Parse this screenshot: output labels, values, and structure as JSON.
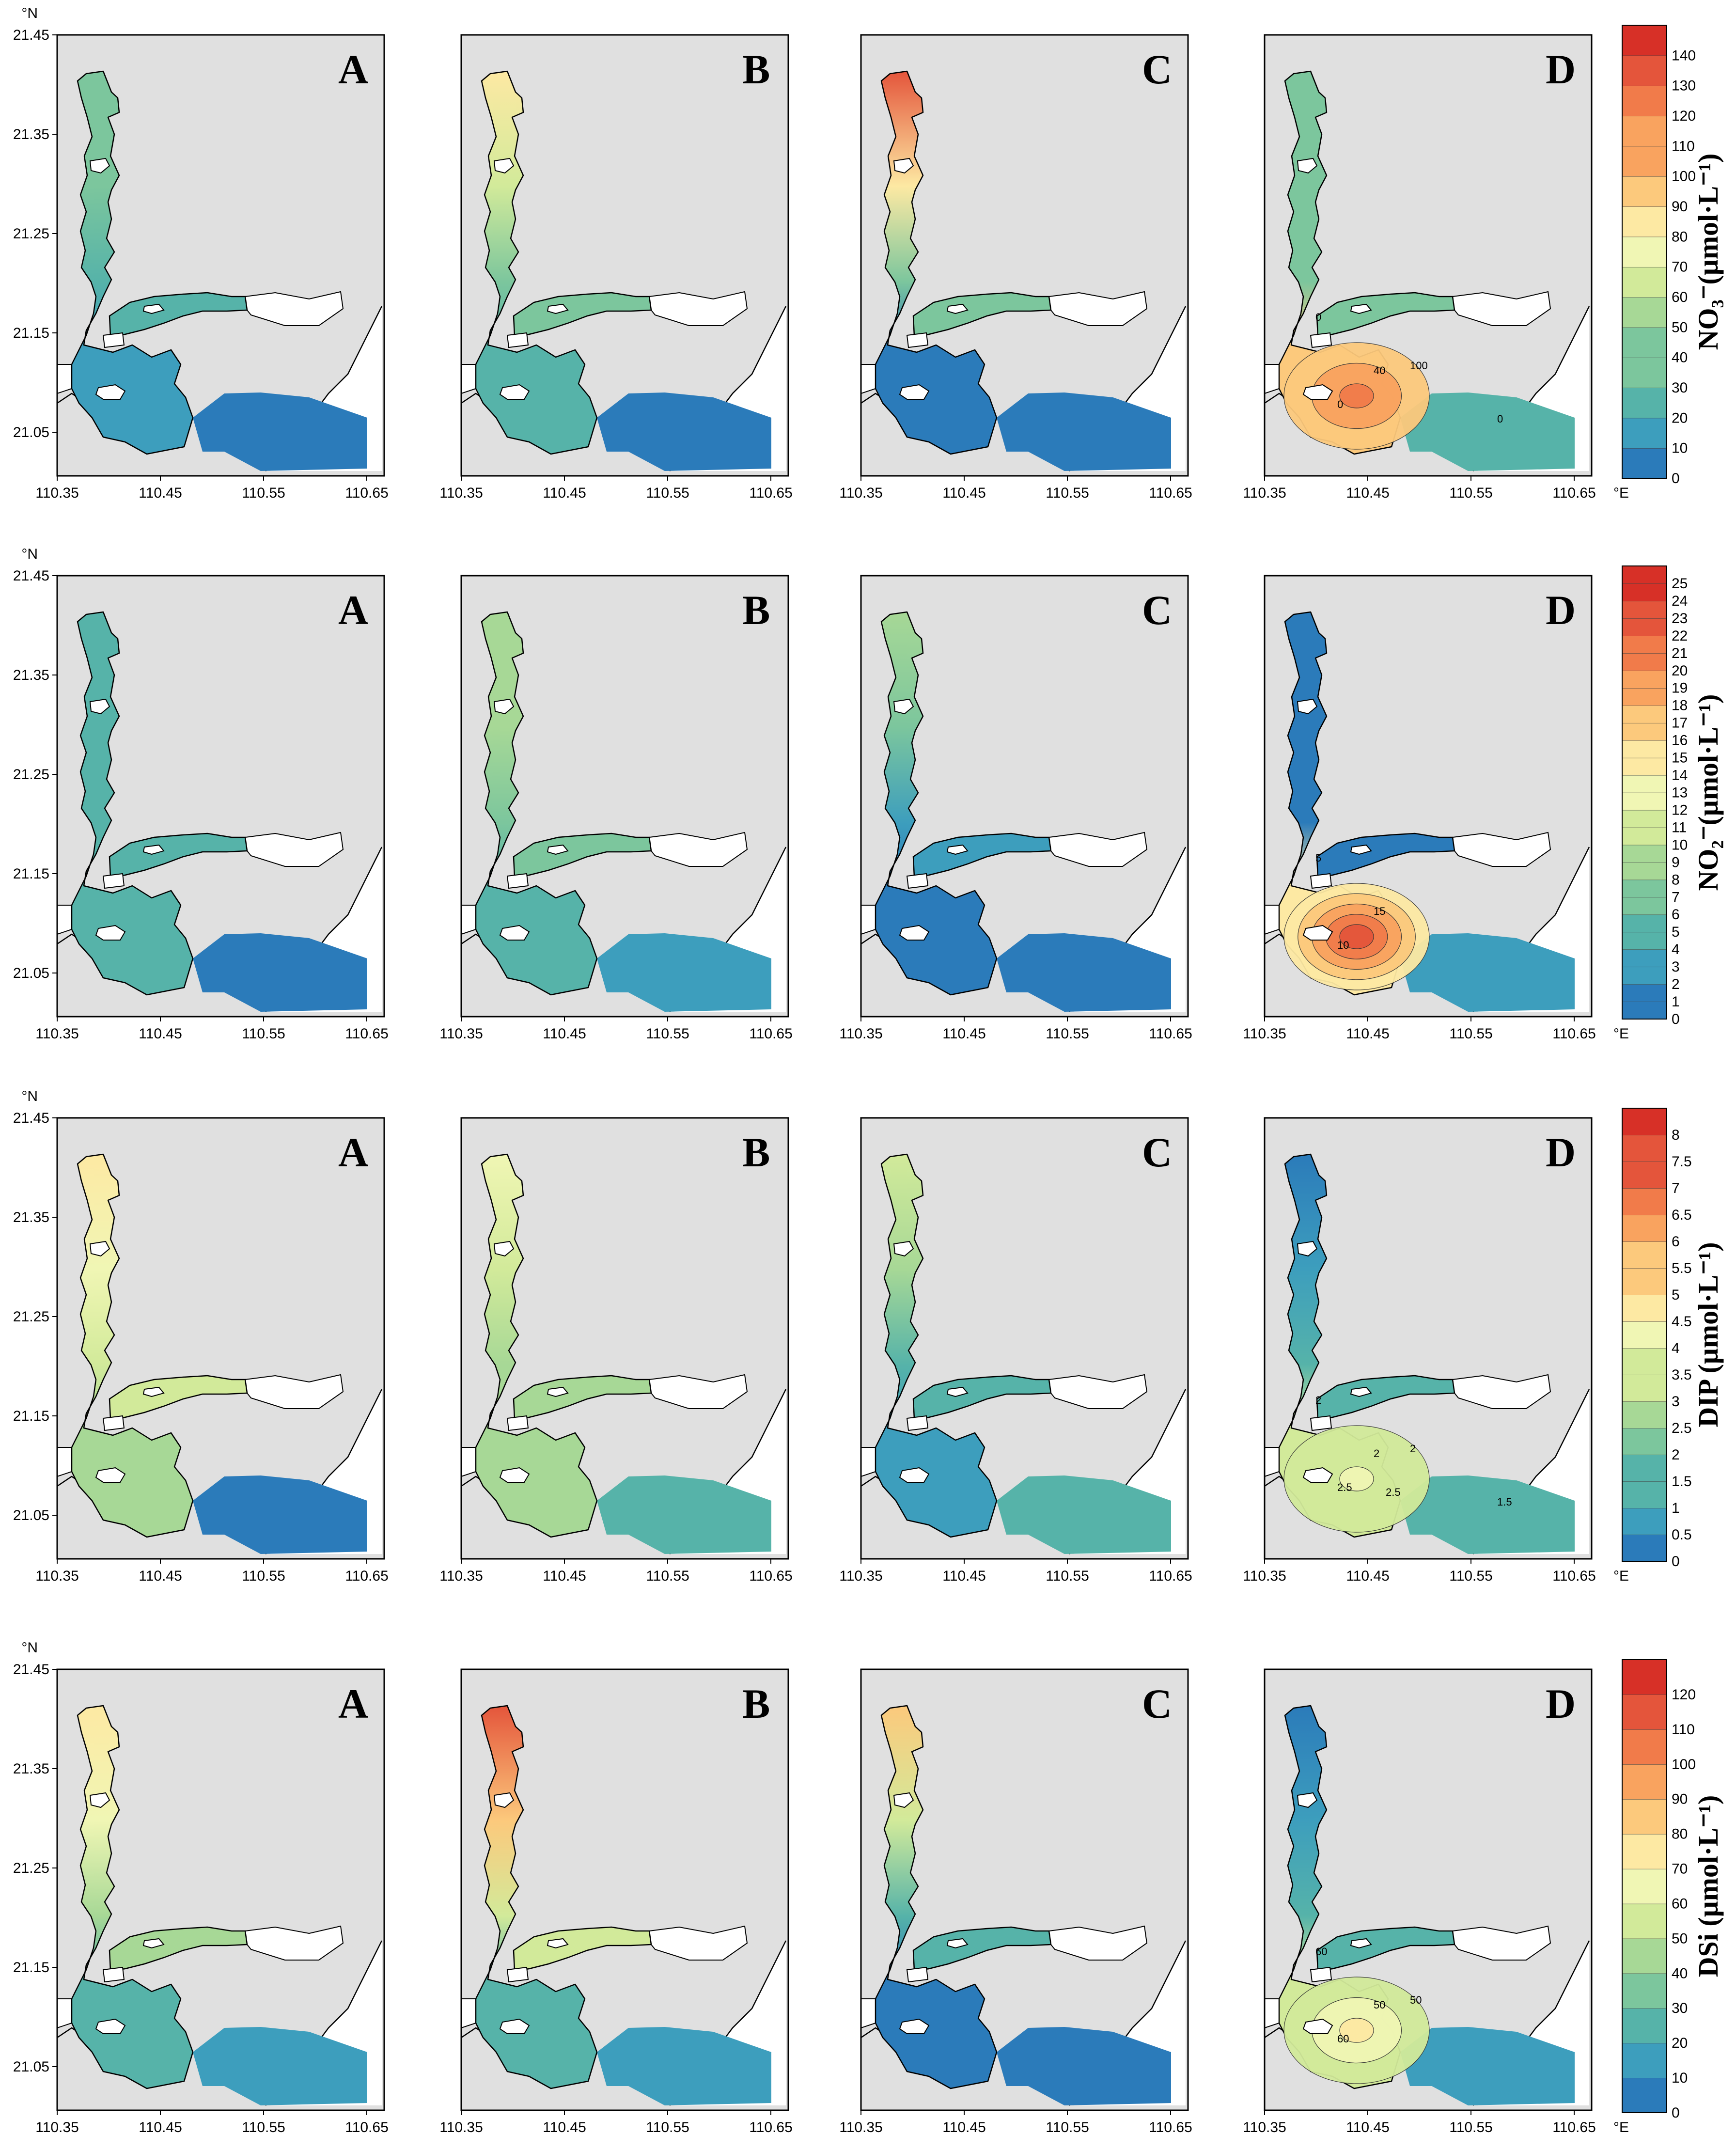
{
  "figure": {
    "lat_unit": "°N",
    "lon_unit": "°E",
    "lat_ticks": [
      "21.45",
      "21.35",
      "21.25",
      "21.15",
      "21.05"
    ],
    "lon_ticks": [
      "110.35",
      "110.45",
      "110.55",
      "110.65"
    ],
    "panel_letters": [
      "A",
      "B",
      "C",
      "D"
    ],
    "rows": [
      {
        "variable": "NO3-",
        "colorbar_label": "NO₃⁻(μmol·L⁻¹)",
        "scale": [
          "0",
          "10",
          "20",
          "30",
          "40",
          "50",
          "60",
          "70",
          "80",
          "90",
          "100",
          "110",
          "120",
          "130",
          "140"
        ],
        "contour_labels": [
          "0",
          "0",
          "40",
          "100",
          "0"
        ]
      },
      {
        "variable": "NO2-",
        "colorbar_label": "NO₂⁻(μmol·L⁻¹)",
        "scale": [
          "0",
          "1",
          "2",
          "3",
          "4",
          "5",
          "6",
          "7",
          "8",
          "9",
          "10",
          "11",
          "12",
          "13",
          "14",
          "15",
          "16",
          "17",
          "18",
          "19",
          "20",
          "21",
          "22",
          "23",
          "24",
          "25"
        ],
        "contour_labels": [
          "5",
          "10",
          "15"
        ]
      },
      {
        "variable": "DIP",
        "colorbar_label": "DIP (μmol·L⁻¹)",
        "scale": [
          "0",
          "0.5",
          "1",
          "1.5",
          "2",
          "2.5",
          "3",
          "3.5",
          "4",
          "4.5",
          "5",
          "5.5",
          "6",
          "6.5",
          "7",
          "7.5",
          "8"
        ],
        "contour_labels": [
          "2",
          "2.5",
          "2",
          "2",
          "1.5",
          "2.5"
        ]
      },
      {
        "variable": "DSi",
        "colorbar_label": "DSi (μmol·L⁻¹)",
        "scale": [
          "0",
          "10",
          "20",
          "30",
          "40",
          "50",
          "60",
          "70",
          "80",
          "90",
          "100",
          "110",
          "120"
        ],
        "contour_labels": [
          "60",
          "60",
          "50",
          "50"
        ]
      }
    ]
  },
  "colors": {
    "land": "#e0e0e0",
    "unsampled_water": "#ffffff",
    "coast_line": "#000000",
    "ramp": [
      "#2b7bba",
      "#3d9ebd",
      "#56b3a9",
      "#7cc69d",
      "#a7d896",
      "#d2ea9a",
      "#f0f6b4",
      "#fde9a3",
      "#fcc97c",
      "#f9a35f",
      "#f17b4a",
      "#e4553b",
      "#d73027"
    ]
  },
  "fields": [
    [
      {
        "upper": 3,
        "mid": 2,
        "bay": 1,
        "sea": 0,
        "hot": null
      },
      {
        "upper": 7,
        "mid": 3,
        "bay": 2,
        "sea": 0,
        "hot": null
      },
      {
        "upper": 11,
        "mid": 3,
        "bay": 0,
        "sea": 0,
        "hot": null
      },
      {
        "upper": 3,
        "mid": 3,
        "bay": 8,
        "sea": 2,
        "hot": 10
      }
    ],
    [
      {
        "upper": 2,
        "mid": 2,
        "bay": 2,
        "sea": 0,
        "hot": null
      },
      {
        "upper": 4,
        "mid": 3,
        "bay": 2,
        "sea": 1,
        "hot": null
      },
      {
        "upper": 4,
        "mid": 1,
        "bay": 0,
        "sea": 0,
        "hot": null
      },
      {
        "upper": 0,
        "mid": 0,
        "bay": 7,
        "sea": 1,
        "hot": 11
      }
    ],
    [
      {
        "upper": 7,
        "mid": 5,
        "bay": 4,
        "sea": 0,
        "hot": null
      },
      {
        "upper": 6,
        "mid": 4,
        "bay": 4,
        "sea": 2,
        "hot": null
      },
      {
        "upper": 5,
        "mid": 2,
        "bay": 1,
        "sea": 2,
        "hot": null
      },
      {
        "upper": 0,
        "mid": 2,
        "bay": 5,
        "sea": 2,
        "hot": 6
      }
    ],
    [
      {
        "upper": 7,
        "mid": 4,
        "bay": 2,
        "sea": 1,
        "hot": null
      },
      {
        "upper": 11,
        "mid": 5,
        "bay": 2,
        "sea": 1,
        "hot": null
      },
      {
        "upper": 8,
        "mid": 2,
        "bay": 0,
        "sea": 0,
        "hot": null
      },
      {
        "upper": 0,
        "mid": 2,
        "bay": 5,
        "sea": 1,
        "hot": 7
      }
    ]
  ]
}
